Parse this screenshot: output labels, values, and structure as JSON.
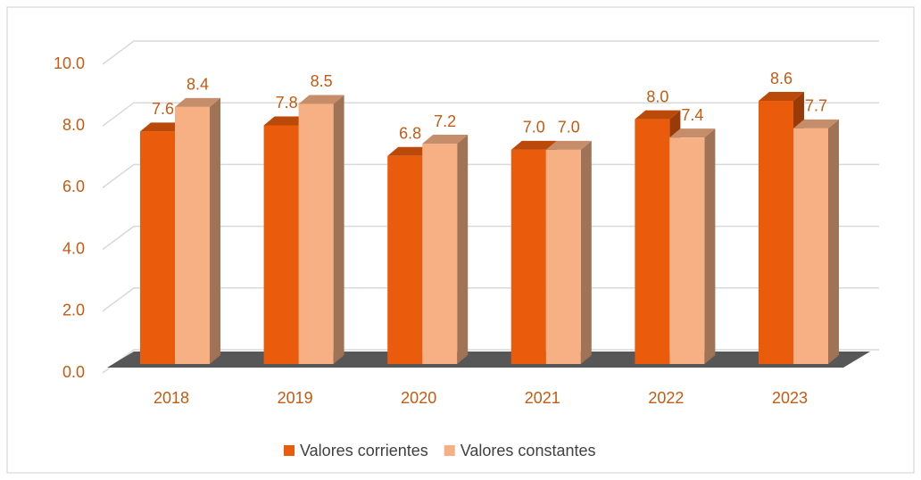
{
  "chart_data": {
    "type": "bar3d",
    "categories": [
      "2018",
      "2019",
      "2020",
      "2021",
      "2022",
      "2023"
    ],
    "series": [
      {
        "name": "Valores corrientes",
        "color": "#ea5b0c",
        "values": [
          7.6,
          7.8,
          6.8,
          7.0,
          8.0,
          8.6
        ],
        "value_labels": [
          "7.6",
          "7.8",
          "6.8",
          "7.0",
          "8.0",
          "8.6"
        ]
      },
      {
        "name": "Valores constantes",
        "color": "#f6b084",
        "values": [
          8.4,
          8.5,
          7.2,
          7.0,
          7.4,
          7.7
        ],
        "value_labels": [
          "8.4",
          "8.5",
          "7.2",
          "7.0",
          "7.4",
          "7.7"
        ]
      }
    ],
    "ylim": [
      0,
      10
    ],
    "yticks": [
      {
        "value": 0,
        "label": "0.0"
      },
      {
        "value": 2,
        "label": "2.0"
      },
      {
        "value": 4,
        "label": "4.0"
      },
      {
        "value": 6,
        "label": "6.0"
      },
      {
        "value": 8,
        "label": "8.0"
      },
      {
        "value": 10,
        "label": "10.0"
      }
    ],
    "grid": true,
    "legend": "bottom"
  }
}
